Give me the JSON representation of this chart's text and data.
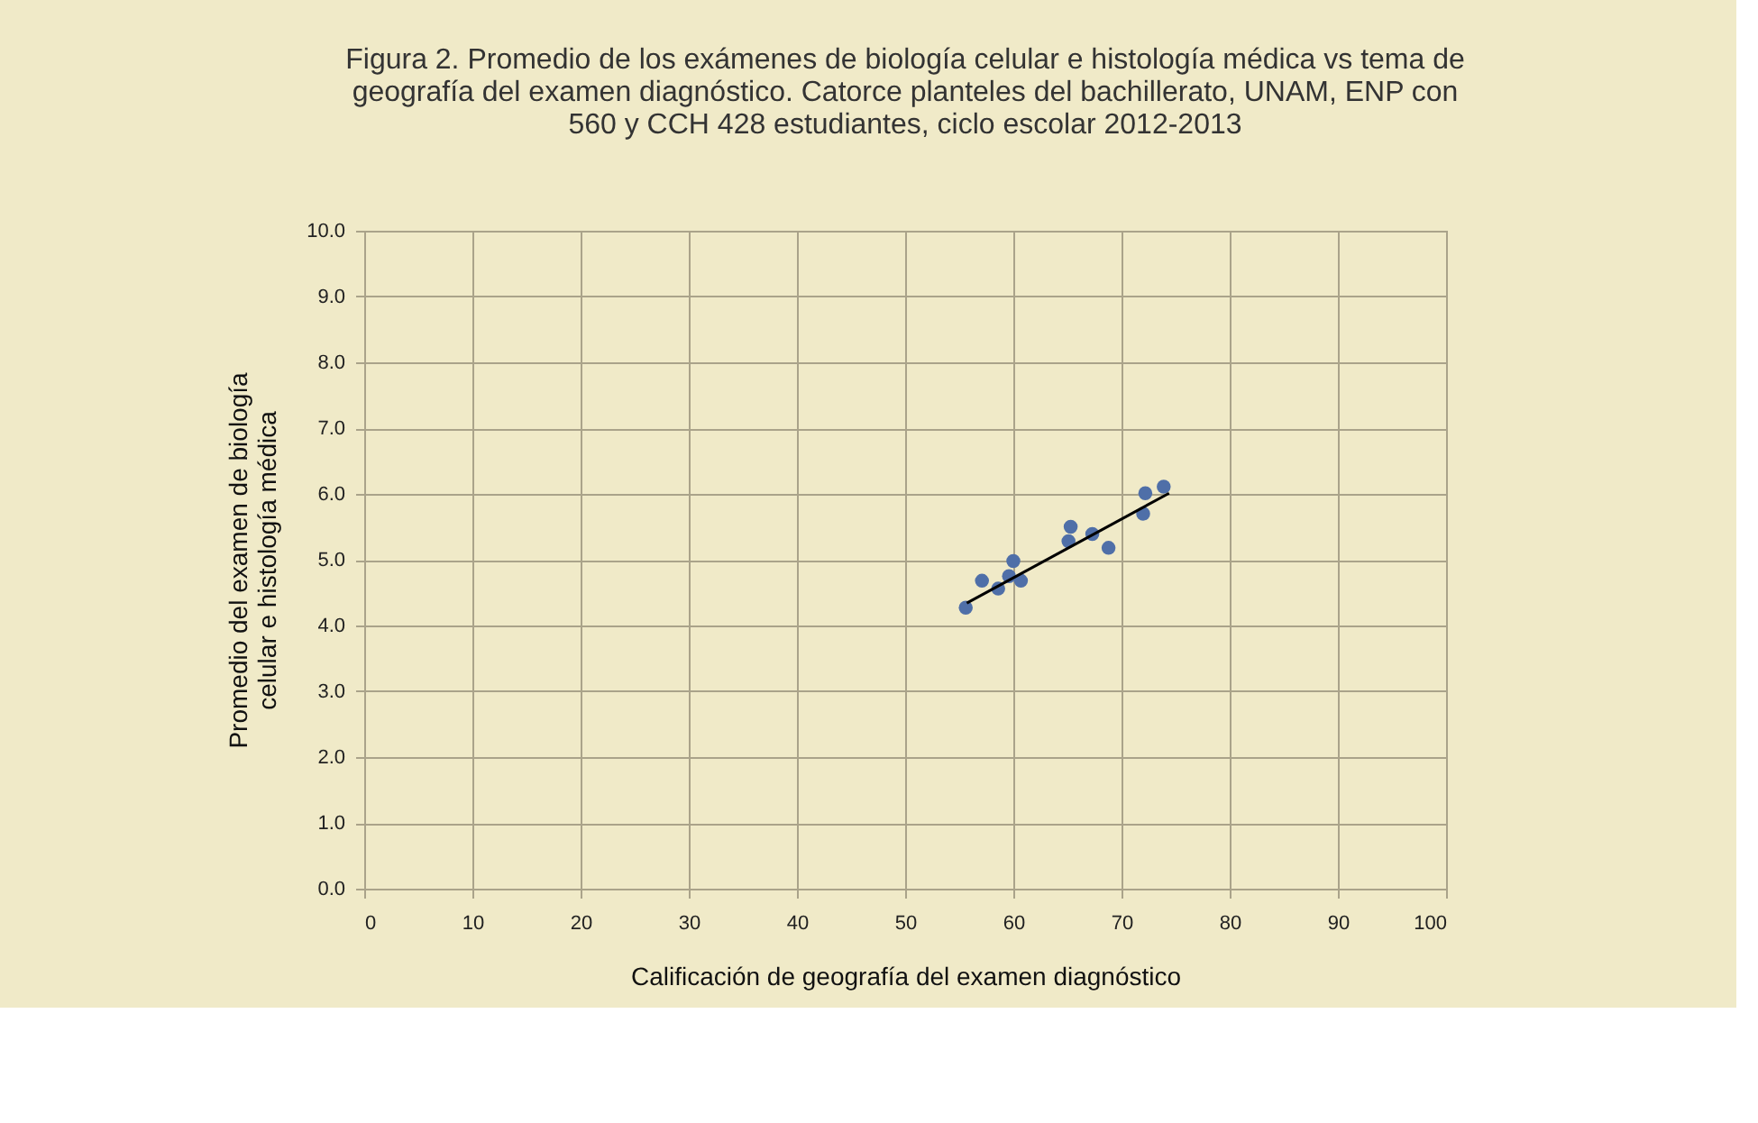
{
  "chart_data": {
    "type": "scatter",
    "title": "Figura 2. Promedio de los exámenes de biología celular e histología médica vs tema de geografía del examen diagnóstico. Catorce planteles del bachillerato, UNAM, ENP con 560 y CCH 428 estudiantes, ciclo escolar 2012-2013",
    "xlabel": "Calificación de geografía del examen diagnóstico",
    "ylabel": "Promedio del examen de biología celular e histología médica",
    "series": [
      {
        "color": "#4f6fa8",
        "marker": "circle",
        "x": [
          55.6,
          57.1,
          58.6,
          59.6,
          60.0,
          60.7,
          65.1,
          65.3,
          67.3,
          68.8,
          72.0,
          72.2,
          73.9
        ],
        "values": [
          4.27,
          4.68,
          4.56,
          4.75,
          4.98,
          4.68,
          5.28,
          5.5,
          5.39,
          5.18,
          5.7,
          6.01,
          6.11
        ]
      },
      {
        "type": "line",
        "color": "#000000",
        "x": [
          55.7,
          74.4
        ],
        "values": [
          4.34,
          6.01
        ]
      }
    ],
    "xlim": [
      0,
      100
    ],
    "xticks": [
      0,
      10,
      20,
      30,
      40,
      50,
      60,
      70,
      80,
      90,
      100
    ],
    "ylim": [
      0,
      10
    ],
    "yticks": [
      {
        "value": 0,
        "label": "0.0"
      },
      {
        "value": 1,
        "label": "1.0"
      },
      {
        "value": 2,
        "label": "2.0"
      },
      {
        "value": 3,
        "label": "3.0"
      },
      {
        "value": 4,
        "label": "4.0"
      },
      {
        "value": 5,
        "label": "5.0"
      },
      {
        "value": 6,
        "label": "6.0"
      },
      {
        "value": 7,
        "label": "7.0"
      },
      {
        "value": 8,
        "label": "8.0"
      },
      {
        "value": 9,
        "label": "9.0"
      },
      {
        "value": 10,
        "label": "10.0"
      }
    ],
    "grid": true
  }
}
